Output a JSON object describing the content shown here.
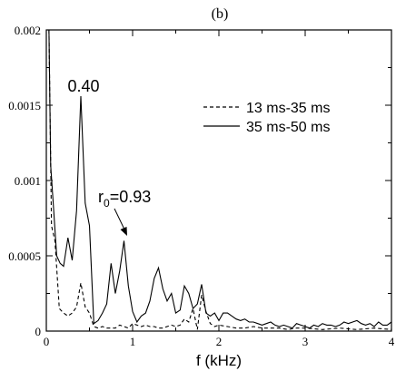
{
  "chart_data": {
    "type": "line",
    "panel_label": "(b)",
    "xlabel": "f (kHz)",
    "ylabel": "",
    "xlim": [
      0,
      4
    ],
    "ylim": [
      0,
      0.002
    ],
    "xticks": [
      {
        "value": 0,
        "label": "0"
      },
      {
        "value": 1,
        "label": "1"
      },
      {
        "value": 2,
        "label": "2"
      },
      {
        "value": 3,
        "label": "3"
      },
      {
        "value": 4,
        "label": "4"
      }
    ],
    "yticks": [
      {
        "value": 0,
        "label": "0"
      },
      {
        "value": 0.0005,
        "label": "0.0005"
      },
      {
        "value": 0.001,
        "label": "0.001"
      },
      {
        "value": 0.0015,
        "label": "0.0015"
      },
      {
        "value": 0.002,
        "label": "0.002"
      }
    ],
    "grid": false,
    "legend": {
      "placement": "top-right",
      "entries": [
        {
          "label": "13 ms-35 ms",
          "style": "dashed"
        },
        {
          "label": "35 ms-50 ms",
          "style": "solid"
        }
      ]
    },
    "annotations": {
      "peak_label": "0.40",
      "peak_x": 0.4,
      "peak_y": 0.00156,
      "ratio_label_main": "r",
      "ratio_label_sub": "0",
      "ratio_label_value": "=0.93",
      "ratio_x": 0.93,
      "ratio_y": 0.00062
    },
    "series": [
      {
        "name": "13 ms-35 ms",
        "style": "dashed",
        "color": "#000000",
        "x": [
          0.03,
          0.06,
          0.1,
          0.15,
          0.2,
          0.25,
          0.3,
          0.35,
          0.4,
          0.45,
          0.5,
          0.55,
          0.6,
          0.65,
          0.7,
          0.75,
          0.8,
          0.85,
          0.9,
          0.95,
          1.0,
          1.05,
          1.1,
          1.15,
          1.2,
          1.25,
          1.3,
          1.35,
          1.4,
          1.45,
          1.5,
          1.55,
          1.6,
          1.65,
          1.7,
          1.75,
          1.8,
          1.85,
          1.9,
          1.95,
          2.0,
          2.1,
          2.2,
          2.3,
          2.4,
          2.5,
          2.6,
          2.7,
          2.8,
          2.9,
          3.0,
          3.2,
          3.4,
          3.6,
          3.8,
          4.0
        ],
        "values": [
          0.002,
          0.0007,
          0.0006,
          0.00015,
          0.00012,
          0.0001,
          0.00012,
          0.00016,
          0.00032,
          0.00016,
          0.00012,
          3e-05,
          2e-05,
          3e-05,
          2e-05,
          2e-05,
          2e-05,
          4e-05,
          3e-05,
          2e-05,
          5e-05,
          4e-05,
          3e-05,
          4e-05,
          3e-05,
          3e-05,
          2e-05,
          2e-05,
          3e-05,
          4e-05,
          3e-05,
          4e-05,
          8e-05,
          6e-05,
          0.00015,
          1e-05,
          0.00024,
          0.00013,
          5e-05,
          3e-05,
          4e-05,
          3e-05,
          2e-05,
          2e-05,
          3e-05,
          2e-05,
          2e-05,
          2e-05,
          1e-05,
          2e-05,
          2e-05,
          1e-05,
          2e-05,
          1e-05,
          2e-05,
          1e-05
        ]
      },
      {
        "name": "35 ms-50 ms",
        "style": "solid",
        "color": "#000000",
        "x": [
          0.03,
          0.05,
          0.08,
          0.12,
          0.16,
          0.2,
          0.25,
          0.3,
          0.35,
          0.4,
          0.45,
          0.5,
          0.55,
          0.6,
          0.65,
          0.7,
          0.75,
          0.8,
          0.85,
          0.9,
          0.95,
          1.0,
          1.05,
          1.1,
          1.15,
          1.2,
          1.25,
          1.3,
          1.35,
          1.4,
          1.45,
          1.5,
          1.55,
          1.6,
          1.65,
          1.7,
          1.75,
          1.8,
          1.85,
          1.9,
          1.95,
          2.0,
          2.05,
          2.1,
          2.15,
          2.2,
          2.25,
          2.3,
          2.35,
          2.4,
          2.45,
          2.5,
          2.55,
          2.6,
          2.65,
          2.7,
          2.75,
          2.8,
          2.85,
          2.9,
          2.95,
          3.0,
          3.05,
          3.1,
          3.15,
          3.2,
          3.25,
          3.3,
          3.35,
          3.4,
          3.45,
          3.5,
          3.55,
          3.6,
          3.65,
          3.7,
          3.75,
          3.8,
          3.85,
          3.9,
          3.95,
          4.0
        ],
        "values": [
          0.002,
          0.0011,
          0.00085,
          0.0005,
          0.00045,
          0.00043,
          0.00062,
          0.00047,
          0.0008,
          0.00156,
          0.00085,
          0.0007,
          5e-05,
          7e-05,
          0.00012,
          0.00018,
          0.00045,
          0.00025,
          0.0004,
          0.0006,
          0.0003,
          0.00013,
          6e-05,
          0.0001,
          0.00012,
          0.0002,
          0.00035,
          0.00042,
          0.00028,
          0.0002,
          0.00025,
          0.00012,
          0.00014,
          0.0003,
          0.00025,
          0.00015,
          0.00018,
          0.00031,
          0.00012,
          0.0001,
          0.00012,
          7e-05,
          0.00012,
          0.00012,
          0.0001,
          8e-05,
          7e-05,
          8e-05,
          6e-05,
          6e-05,
          5e-05,
          4e-05,
          5e-05,
          6e-05,
          4e-05,
          3e-05,
          4e-05,
          3e-05,
          2e-05,
          5e-05,
          4e-05,
          3e-05,
          2e-05,
          4e-05,
          3e-05,
          5e-05,
          4e-05,
          4e-05,
          3e-05,
          4e-05,
          6e-05,
          5e-05,
          6e-05,
          7e-05,
          5e-05,
          4e-05,
          5e-05,
          3e-05,
          6e-05,
          4e-05,
          4e-05,
          6e-05
        ]
      }
    ]
  }
}
